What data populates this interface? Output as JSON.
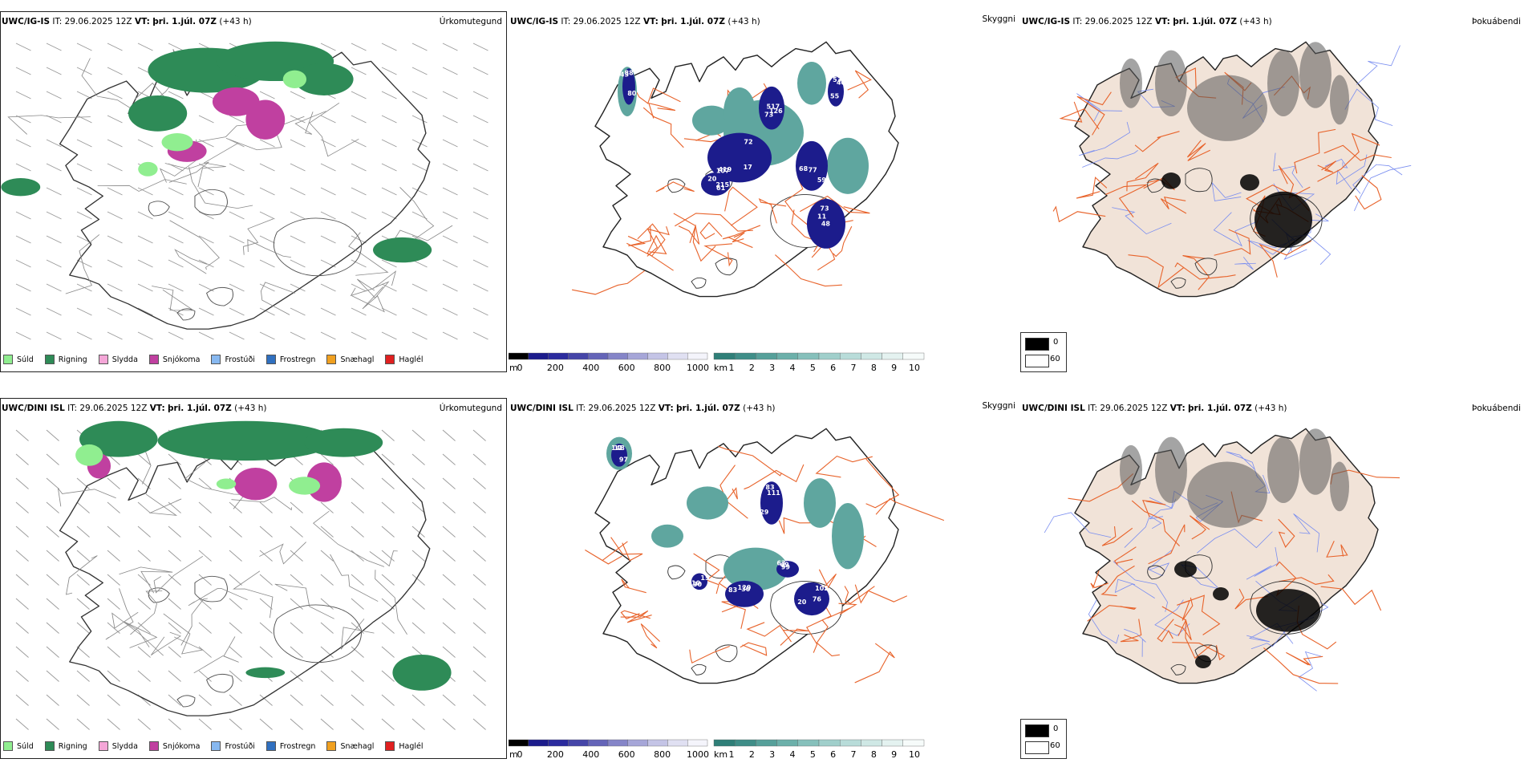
{
  "rows": [
    {
      "precip": {
        "model": "UWC/IG-IS",
        "it_label": "IT:",
        "it": "29.06.2025 12Z",
        "vt_label": "VT:",
        "vt": "þri. 1.júl. 07Z",
        "lead": "(+43 h)",
        "param": "Úrkomutegund"
      },
      "ceiling": {
        "model": "UWC/IG-IS",
        "it_label": "IT:",
        "it": "29.06.2025 12Z",
        "vt_label": "VT:",
        "vt": "þri. 1.júl. 07Z",
        "lead": "(+43 h)",
        "param": "Skyggni"
      },
      "fog": {
        "model": "UWC/IG-IS",
        "it_label": "IT:",
        "it": "29.06.2025 12Z",
        "vt_label": "VT:",
        "vt": "þri. 1.júl. 07Z",
        "lead": "(+43 h)",
        "param": "Þokuábendi"
      }
    },
    {
      "precip": {
        "model": "UWC/DINI ISL",
        "it_label": "IT:",
        "it": "29.06.2025 12Z",
        "vt_label": "VT:",
        "vt": "þri. 1.júl. 07Z",
        "lead": "(+43 h)",
        "param": "Úrkomutegund"
      },
      "ceiling": {
        "model": "UWC/DINI ISL",
        "it_label": "IT:",
        "it": "29.06.2025 12Z",
        "vt_label": "VT:",
        "vt": "þri. 1.júl. 07Z",
        "lead": "(+43 h)",
        "param": "Skyggni"
      },
      "fog": {
        "model": "UWC/DINI ISL",
        "it_label": "IT:",
        "it": "29.06.2025 12Z",
        "vt_label": "VT:",
        "vt": "þri. 1.júl. 07Z",
        "lead": "(+43 h)",
        "param": "Þokuábendi"
      }
    }
  ],
  "precip_legend": [
    {
      "label": "Súld",
      "color": "#90ee90"
    },
    {
      "label": "Rigning",
      "color": "#2e8b57"
    },
    {
      "label": "Slydda",
      "color": "#f4a6d7"
    },
    {
      "label": "Snjókoma",
      "color": "#c040a0"
    },
    {
      "label": "Frostúði",
      "color": "#87b8f0"
    },
    {
      "label": "Frostregn",
      "color": "#3070c0"
    },
    {
      "label": "Snæhagl",
      "color": "#f0a020"
    },
    {
      "label": "Haglél",
      "color": "#e02020"
    }
  ],
  "ceiling_scale": {
    "unit": "m",
    "ticks": [
      "0",
      "200",
      "400",
      "600",
      "800",
      "1000"
    ],
    "colors": [
      "#000000",
      "#1c1c8c",
      "#2b2b9e",
      "#4545a8",
      "#6464b8",
      "#8585c8",
      "#a6a6d8",
      "#c4c4e6",
      "#e0e0f2",
      "#f4f4fb"
    ]
  },
  "visibility_scale": {
    "unit": "km",
    "ticks": [
      "1",
      "2",
      "3",
      "4",
      "5",
      "6",
      "7",
      "8",
      "9",
      "10"
    ],
    "colors": [
      "#2f7f78",
      "#3f8e88",
      "#56a09a",
      "#6cb0aa",
      "#86c0bb",
      "#a0cfcb",
      "#b8dcd9",
      "#cfe8e5",
      "#e4f2f0",
      "#f6fbfa"
    ]
  },
  "fog_scale": {
    "ticks": [
      "0",
      "60"
    ],
    "colors": [
      "#000000",
      "#ffffff"
    ]
  },
  "ceiling_labels_top": [
    "107",
    "215",
    "517",
    "77",
    "73",
    "53",
    "80",
    "72",
    "61",
    "73",
    "59",
    "11",
    "55",
    "88",
    "17",
    "20",
    "126",
    "68",
    "48",
    "40",
    "43",
    "419"
  ],
  "ceiling_labels_bot": [
    "97",
    "83",
    "102",
    "99",
    "111",
    "130",
    "148",
    "120",
    "20",
    "49",
    "29",
    "10",
    "11",
    "30",
    "76",
    "63",
    "83",
    "15"
  ],
  "colors": {
    "land": "#f1e3d8",
    "roads": "#e8642c",
    "rivers": "#7a8ef0",
    "coast": "#222222",
    "ceiling_blue": "#1c1c8c",
    "vis_teal": "#5fa69f",
    "rain": "#2e8b57",
    "drizzle": "#90ee90",
    "snow": "#c040a0"
  }
}
